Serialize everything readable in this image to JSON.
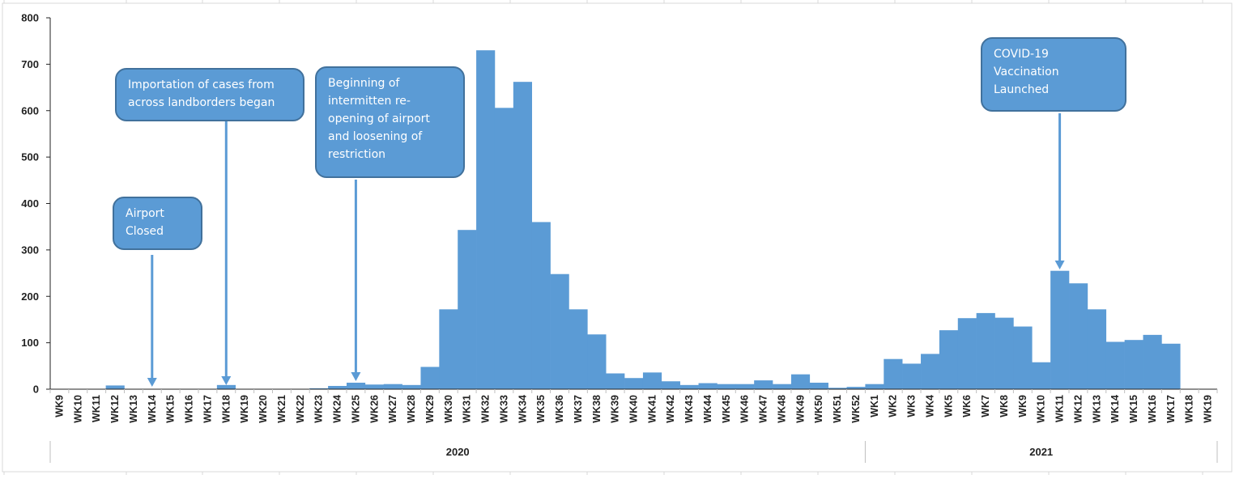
{
  "colors": {
    "bar": "#5b9bd5",
    "bar_edge": "#5b9bd5",
    "callout_fill": "#5b9bd5",
    "callout_border": "#41719c",
    "arrow": "#5b9bd5",
    "axis": "#222222",
    "sheet_grid": "#d9d9d9"
  },
  "chart_data": {
    "type": "bar",
    "title": "",
    "xlabel": "",
    "ylabel": "",
    "ylim": [
      0,
      800
    ],
    "yticks": [
      0,
      100,
      200,
      300,
      400,
      500,
      600,
      700,
      800
    ],
    "grid": false,
    "legend": "none",
    "categories": [
      "WK9",
      "WK10",
      "WK11",
      "WK12",
      "WK13",
      "WK14",
      "WK15",
      "WK16",
      "WK17",
      "WK18",
      "WK19",
      "WK20",
      "WK21",
      "WK22",
      "WK23",
      "WK24",
      "WK25",
      "WK26",
      "WK27",
      "WK28",
      "WK29",
      "WK30",
      "WK31",
      "WK32",
      "WK33",
      "WK34",
      "WK35",
      "WK36",
      "WK37",
      "WK38",
      "WK39",
      "WK40",
      "WK41",
      "WK42",
      "WK43",
      "WK44",
      "WK45",
      "WK46",
      "WK47",
      "WK48",
      "WK49",
      "WK50",
      "WK51",
      "WK52",
      "WK1",
      "WK2",
      "WK3",
      "WK4",
      "WK5",
      "WK6",
      "WK7",
      "WK8",
      "WK9",
      "WK10",
      "WK11",
      "WK12",
      "WK13",
      "WK14",
      "WK15",
      "WK16",
      "WK17",
      "WK18",
      "WK19"
    ],
    "values": [
      0,
      0,
      0,
      8,
      0,
      0,
      0,
      0,
      0,
      9,
      0,
      0,
      0,
      0,
      2,
      7,
      14,
      10,
      11,
      9,
      48,
      172,
      343,
      730,
      606,
      662,
      360,
      248,
      172,
      118,
      34,
      24,
      36,
      17,
      9,
      13,
      11,
      11,
      19,
      11,
      32,
      14,
      3,
      5,
      11,
      65,
      55,
      76,
      127,
      153,
      164,
      154,
      135,
      58,
      255,
      228,
      172,
      102,
      106,
      117,
      98,
      0,
      0
    ],
    "groups": [
      {
        "label": "2020",
        "start": 0,
        "end": 43
      },
      {
        "label": "2021",
        "start": 44,
        "end": 62
      }
    ],
    "annotations": [
      {
        "text": [
          "Airport",
          "Closed"
        ],
        "week_index": 5
      },
      {
        "text": [
          "Importation of cases from",
          "across landborders  began"
        ],
        "week_index": 9
      },
      {
        "text": [
          "Beginning of",
          "intermitten re-",
          "opening of airport",
          "and loosening of",
          "restriction"
        ],
        "week_index": 16
      },
      {
        "text": [
          "COVID-19",
          "Vaccination",
          "Launched"
        ],
        "week_index": 54
      }
    ]
  }
}
